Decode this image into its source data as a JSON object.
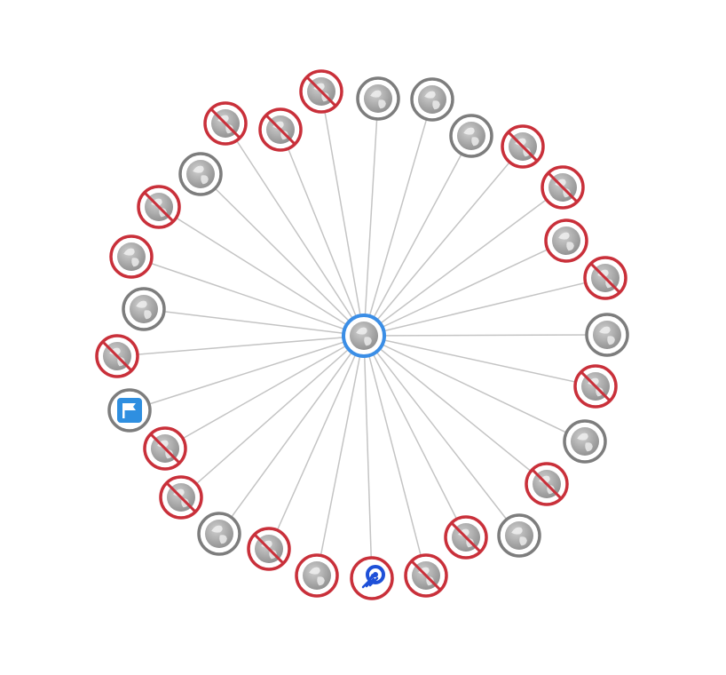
{
  "colors": {
    "edge": "#c4c4c4",
    "ring_gray": "#7d7d7d",
    "ring_red": "#c9303a",
    "ring_blue": "#3b8ee6",
    "globe_fill": "#a9a9a9",
    "globe_light": "#efefef",
    "flag_badge": "#2f8fe0",
    "rocket_blue": "#1e50d8"
  },
  "center_node": {
    "name": "center-globe-node",
    "icon": "globe-icon",
    "ring": "blue"
  },
  "nodes": [
    {
      "name": "node-01",
      "icon": "globe-icon",
      "ring": "red",
      "blocked": true
    },
    {
      "name": "node-02",
      "icon": "globe-icon",
      "ring": "gray",
      "blocked": false
    },
    {
      "name": "node-03",
      "icon": "globe-icon",
      "ring": "gray",
      "blocked": false
    },
    {
      "name": "node-04",
      "icon": "globe-icon",
      "ring": "gray",
      "blocked": false
    },
    {
      "name": "node-05",
      "icon": "globe-icon",
      "ring": "red",
      "blocked": true
    },
    {
      "name": "node-06",
      "icon": "globe-icon",
      "ring": "red",
      "blocked": true
    },
    {
      "name": "node-07",
      "icon": "globe-icon",
      "ring": "red",
      "blocked": false
    },
    {
      "name": "node-08",
      "icon": "globe-icon",
      "ring": "red",
      "blocked": true
    },
    {
      "name": "node-09",
      "icon": "globe-icon",
      "ring": "gray",
      "blocked": false
    },
    {
      "name": "node-10",
      "icon": "globe-icon",
      "ring": "red",
      "blocked": true
    },
    {
      "name": "node-11",
      "icon": "globe-icon",
      "ring": "gray",
      "blocked": false
    },
    {
      "name": "node-12",
      "icon": "globe-icon",
      "ring": "red",
      "blocked": true
    },
    {
      "name": "node-13",
      "icon": "globe-icon",
      "ring": "gray",
      "blocked": false
    },
    {
      "name": "node-14",
      "icon": "globe-icon",
      "ring": "red",
      "blocked": true
    },
    {
      "name": "node-15",
      "icon": "globe-icon",
      "ring": "red",
      "blocked": true
    },
    {
      "name": "node-16",
      "icon": "globe-icon",
      "ring": "red",
      "blocked": false
    },
    {
      "name": "node-17",
      "icon": "rocket-icon",
      "ring": "red",
      "blocked": false
    },
    {
      "name": "node-18",
      "icon": "globe-icon",
      "ring": "red",
      "blocked": true
    },
    {
      "name": "node-19",
      "icon": "globe-icon",
      "ring": "gray",
      "blocked": false
    },
    {
      "name": "node-20",
      "icon": "globe-icon",
      "ring": "red",
      "blocked": true
    },
    {
      "name": "node-21",
      "icon": "globe-icon",
      "ring": "red",
      "blocked": true
    },
    {
      "name": "node-22",
      "icon": "flag-icon",
      "ring": "gray",
      "blocked": false
    },
    {
      "name": "node-23",
      "icon": "globe-icon",
      "ring": "red",
      "blocked": true
    },
    {
      "name": "node-24",
      "icon": "globe-icon",
      "ring": "gray",
      "blocked": false
    },
    {
      "name": "node-25",
      "icon": "globe-icon",
      "ring": "red",
      "blocked": false
    },
    {
      "name": "node-26",
      "icon": "globe-icon",
      "ring": "red",
      "blocked": true
    },
    {
      "name": "node-27",
      "icon": "globe-icon",
      "ring": "gray",
      "blocked": false
    },
    {
      "name": "node-28",
      "icon": "globe-icon",
      "ring": "red",
      "blocked": true
    },
    {
      "name": "node-29",
      "icon": "globe-icon",
      "ring": "red",
      "blocked": true
    }
  ]
}
